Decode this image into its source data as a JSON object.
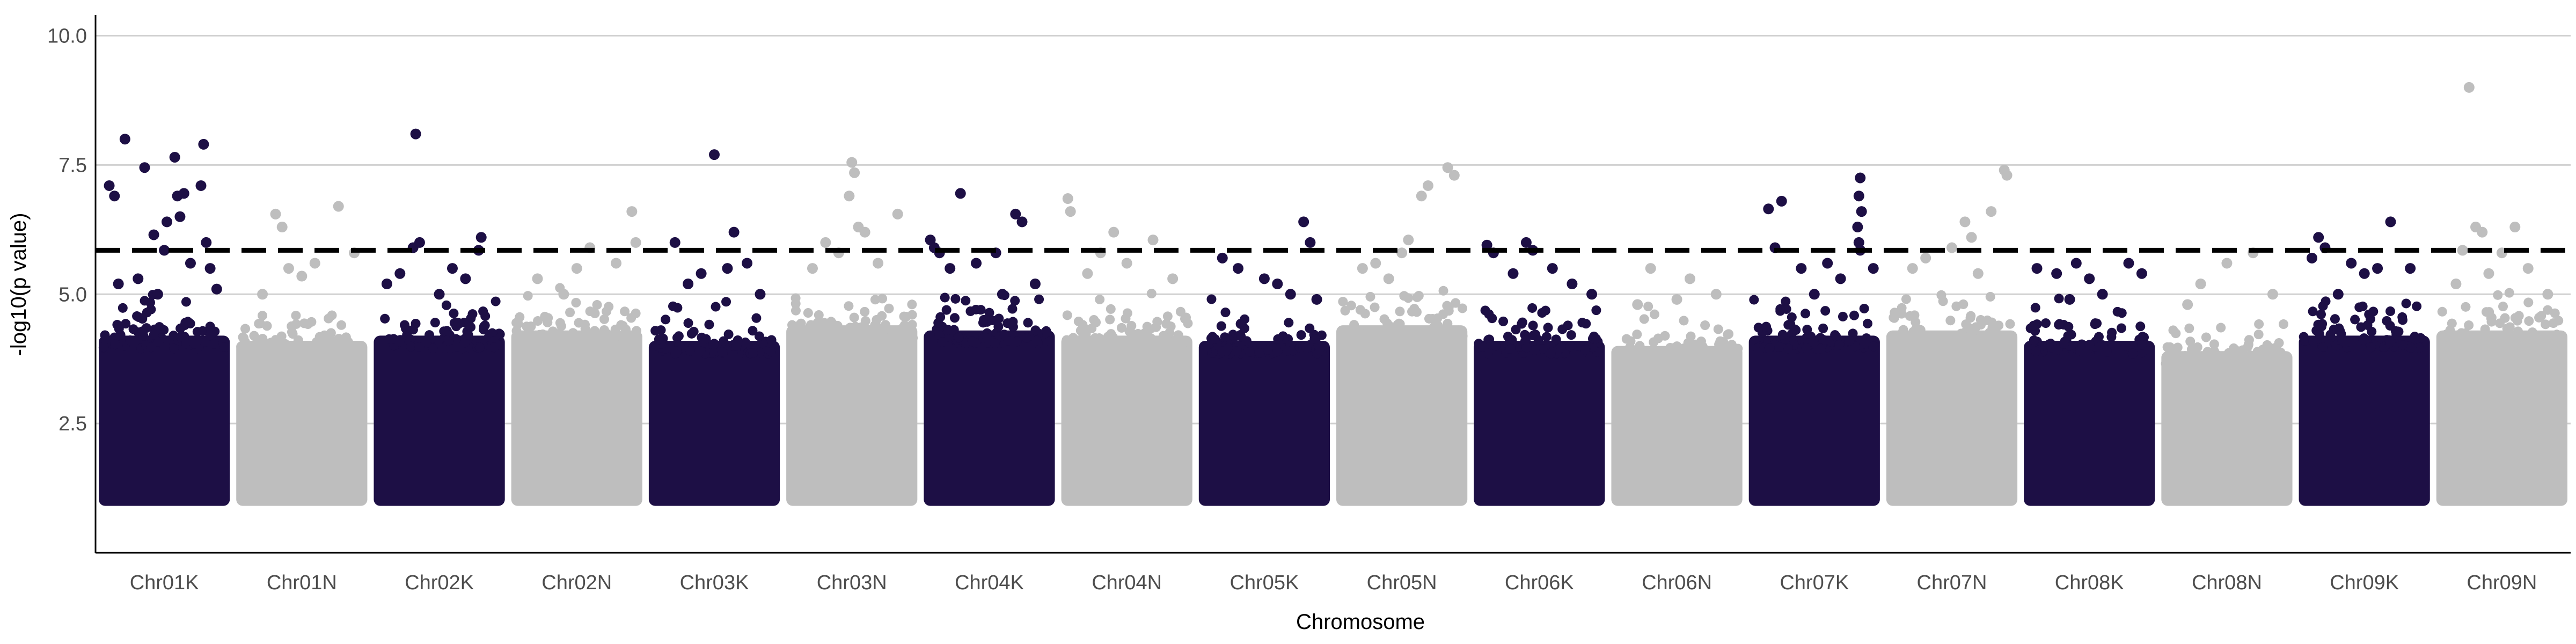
{
  "chart_data": {
    "type": "scatter",
    "subtype": "manhattan",
    "title": "",
    "xlabel": "Chromosome",
    "ylabel": "-log10(p value)",
    "ylim": [
      0.0,
      10.4
    ],
    "yticks": [
      2.5,
      5.0,
      7.5,
      10.0
    ],
    "ytick_labels": [
      "2.5",
      "5.0",
      "7.5",
      "10.0"
    ],
    "grid": {
      "horizontal_major": true,
      "vertical": false
    },
    "legend": "none",
    "threshold": {
      "value": 5.85,
      "style": "dashed",
      "color": "#000000"
    },
    "colors": {
      "odd": "#1d0f45",
      "even": "#bebebe",
      "grid": "#d0d0d0",
      "axis": "#000000"
    },
    "point_floor": 1.0,
    "categories": [
      "Chr01K",
      "Chr01N",
      "Chr02K",
      "Chr02N",
      "Chr03K",
      "Chr03N",
      "Chr04K",
      "Chr04N",
      "Chr05K",
      "Chr05N",
      "Chr06K",
      "Chr06N",
      "Chr07K",
      "Chr07N",
      "Chr08K",
      "Chr08N",
      "Chr09K",
      "Chr09N"
    ],
    "series": [
      {
        "name": "Chr01K",
        "color": "#1d0f45",
        "band_top": 4.2,
        "peaks": [
          [
            0.08,
            7.1
          ],
          [
            0.12,
            6.9
          ],
          [
            0.2,
            8.0
          ],
          [
            0.35,
            7.45
          ],
          [
            0.42,
            6.15
          ],
          [
            0.5,
            5.85
          ],
          [
            0.52,
            6.4
          ],
          [
            0.58,
            7.65
          ],
          [
            0.6,
            6.9
          ],
          [
            0.62,
            6.5
          ],
          [
            0.65,
            6.95
          ],
          [
            0.78,
            7.1
          ],
          [
            0.8,
            7.9
          ],
          [
            0.82,
            6.0
          ],
          [
            0.85,
            5.5
          ],
          [
            0.3,
            5.3
          ],
          [
            0.45,
            5.0
          ],
          [
            0.7,
            5.6
          ],
          [
            0.15,
            5.2
          ],
          [
            0.9,
            5.1
          ]
        ]
      },
      {
        "name": "Chr01N",
        "color": "#bebebe",
        "band_top": 4.1,
        "peaks": [
          [
            0.3,
            6.55
          ],
          [
            0.35,
            6.3
          ],
          [
            0.78,
            6.7
          ],
          [
            0.6,
            5.6
          ],
          [
            0.5,
            5.35
          ],
          [
            0.2,
            5.0
          ],
          [
            0.9,
            5.8
          ],
          [
            0.4,
            5.5
          ]
        ]
      },
      {
        "name": "Chr02K",
        "color": "#1d0f45",
        "band_top": 4.2,
        "peaks": [
          [
            0.32,
            8.1
          ],
          [
            0.3,
            5.9
          ],
          [
            0.35,
            6.0
          ],
          [
            0.82,
            6.1
          ],
          [
            0.8,
            5.85
          ],
          [
            0.2,
            5.4
          ],
          [
            0.6,
            5.5
          ],
          [
            0.5,
            5.0
          ],
          [
            0.7,
            5.3
          ],
          [
            0.1,
            5.2
          ]
        ]
      },
      {
        "name": "Chr02N",
        "color": "#bebebe",
        "band_top": 4.3,
        "peaks": [
          [
            0.92,
            6.6
          ],
          [
            0.95,
            6.0
          ],
          [
            0.6,
            5.9
          ],
          [
            0.5,
            5.5
          ],
          [
            0.2,
            5.3
          ],
          [
            0.8,
            5.6
          ],
          [
            0.4,
            5.0
          ]
        ]
      },
      {
        "name": "Chr03K",
        "color": "#1d0f45",
        "band_top": 4.1,
        "peaks": [
          [
            0.5,
            7.7
          ],
          [
            0.2,
            6.0
          ],
          [
            0.65,
            6.2
          ],
          [
            0.6,
            5.5
          ],
          [
            0.4,
            5.4
          ],
          [
            0.75,
            5.6
          ],
          [
            0.3,
            5.2
          ],
          [
            0.85,
            5.0
          ]
        ]
      },
      {
        "name": "Chr03N",
        "color": "#bebebe",
        "band_top": 4.4,
        "peaks": [
          [
            0.5,
            7.55
          ],
          [
            0.52,
            7.35
          ],
          [
            0.48,
            6.9
          ],
          [
            0.55,
            6.3
          ],
          [
            0.6,
            6.2
          ],
          [
            0.85,
            6.55
          ],
          [
            0.3,
            6.0
          ],
          [
            0.4,
            5.8
          ],
          [
            0.2,
            5.5
          ],
          [
            0.7,
            5.6
          ]
        ]
      },
      {
        "name": "Chr04K",
        "color": "#1d0f45",
        "band_top": 4.3,
        "peaks": [
          [
            0.28,
            6.95
          ],
          [
            0.05,
            6.05
          ],
          [
            0.08,
            5.9
          ],
          [
            0.12,
            5.8
          ],
          [
            0.7,
            6.55
          ],
          [
            0.75,
            6.4
          ],
          [
            0.55,
            5.8
          ],
          [
            0.4,
            5.6
          ],
          [
            0.2,
            5.5
          ],
          [
            0.85,
            5.2
          ],
          [
            0.6,
            5.0
          ]
        ]
      },
      {
        "name": "Chr04N",
        "color": "#bebebe",
        "band_top": 4.2,
        "peaks": [
          [
            0.05,
            6.85
          ],
          [
            0.07,
            6.6
          ],
          [
            0.4,
            6.2
          ],
          [
            0.7,
            6.05
          ],
          [
            0.3,
            5.8
          ],
          [
            0.5,
            5.6
          ],
          [
            0.2,
            5.4
          ],
          [
            0.85,
            5.3
          ]
        ]
      },
      {
        "name": "Chr05K",
        "color": "#1d0f45",
        "band_top": 4.1,
        "peaks": [
          [
            0.8,
            6.4
          ],
          [
            0.85,
            6.0
          ],
          [
            0.18,
            5.7
          ],
          [
            0.3,
            5.5
          ],
          [
            0.5,
            5.3
          ],
          [
            0.6,
            5.2
          ],
          [
            0.7,
            5.0
          ],
          [
            0.9,
            4.9
          ]
        ]
      },
      {
        "name": "Chr05N",
        "color": "#bebebe",
        "band_top": 4.4,
        "peaks": [
          [
            0.85,
            7.45
          ],
          [
            0.9,
            7.3
          ],
          [
            0.7,
            7.1
          ],
          [
            0.65,
            6.9
          ],
          [
            0.55,
            6.05
          ],
          [
            0.5,
            5.8
          ],
          [
            0.3,
            5.6
          ],
          [
            0.2,
            5.5
          ],
          [
            0.4,
            5.3
          ]
        ]
      },
      {
        "name": "Chr06K",
        "color": "#1d0f45",
        "band_top": 4.1,
        "peaks": [
          [
            0.1,
            5.95
          ],
          [
            0.15,
            5.8
          ],
          [
            0.4,
            6.0
          ],
          [
            0.45,
            5.85
          ],
          [
            0.6,
            5.5
          ],
          [
            0.3,
            5.4
          ],
          [
            0.75,
            5.2
          ],
          [
            0.9,
            5.0
          ]
        ]
      },
      {
        "name": "Chr06N",
        "color": "#bebebe",
        "band_top": 4.0,
        "peaks": [
          [
            0.3,
            5.5
          ],
          [
            0.6,
            5.3
          ],
          [
            0.8,
            5.0
          ],
          [
            0.5,
            4.9
          ],
          [
            0.2,
            4.8
          ]
        ]
      },
      {
        "name": "Chr07K",
        "color": "#1d0f45",
        "band_top": 4.2,
        "peaks": [
          [
            0.85,
            7.25
          ],
          [
            0.84,
            6.9
          ],
          [
            0.86,
            6.6
          ],
          [
            0.83,
            6.3
          ],
          [
            0.84,
            6.0
          ],
          [
            0.85,
            5.85
          ],
          [
            0.15,
            6.65
          ],
          [
            0.25,
            6.8
          ],
          [
            0.2,
            5.9
          ],
          [
            0.4,
            5.5
          ],
          [
            0.6,
            5.6
          ],
          [
            0.7,
            5.3
          ],
          [
            0.95,
            5.5
          ],
          [
            0.5,
            5.0
          ]
        ]
      },
      {
        "name": "Chr07N",
        "color": "#bebebe",
        "band_top": 4.3,
        "peaks": [
          [
            0.9,
            7.4
          ],
          [
            0.92,
            7.3
          ],
          [
            0.8,
            6.6
          ],
          [
            0.6,
            6.4
          ],
          [
            0.65,
            6.1
          ],
          [
            0.5,
            5.9
          ],
          [
            0.3,
            5.7
          ],
          [
            0.2,
            5.5
          ],
          [
            0.7,
            5.4
          ]
        ]
      },
      {
        "name": "Chr08K",
        "color": "#1d0f45",
        "band_top": 4.1,
        "peaks": [
          [
            0.1,
            5.5
          ],
          [
            0.25,
            5.4
          ],
          [
            0.4,
            5.6
          ],
          [
            0.5,
            5.3
          ],
          [
            0.6,
            5.0
          ],
          [
            0.8,
            5.6
          ],
          [
            0.9,
            5.4
          ],
          [
            0.35,
            4.9
          ]
        ]
      },
      {
        "name": "Chr08N",
        "color": "#bebebe",
        "band_top": 3.9,
        "peaks": [
          [
            0.5,
            5.6
          ],
          [
            0.7,
            5.8
          ],
          [
            0.3,
            5.2
          ],
          [
            0.2,
            4.8
          ],
          [
            0.85,
            5.0
          ]
        ]
      },
      {
        "name": "Chr09K",
        "color": "#1d0f45",
        "band_top": 4.2,
        "peaks": [
          [
            0.15,
            6.1
          ],
          [
            0.2,
            5.9
          ],
          [
            0.1,
            5.7
          ],
          [
            0.7,
            6.4
          ],
          [
            0.6,
            5.5
          ],
          [
            0.5,
            5.4
          ],
          [
            0.4,
            5.6
          ],
          [
            0.85,
            5.5
          ],
          [
            0.3,
            5.0
          ]
        ]
      },
      {
        "name": "Chr09N",
        "color": "#bebebe",
        "band_top": 4.3,
        "peaks": [
          [
            0.25,
            9.0
          ],
          [
            0.2,
            5.85
          ],
          [
            0.3,
            6.3
          ],
          [
            0.35,
            6.2
          ],
          [
            0.6,
            6.3
          ],
          [
            0.5,
            5.8
          ],
          [
            0.7,
            5.5
          ],
          [
            0.4,
            5.4
          ],
          [
            0.15,
            5.2
          ],
          [
            0.85,
            5.0
          ]
        ]
      }
    ]
  }
}
